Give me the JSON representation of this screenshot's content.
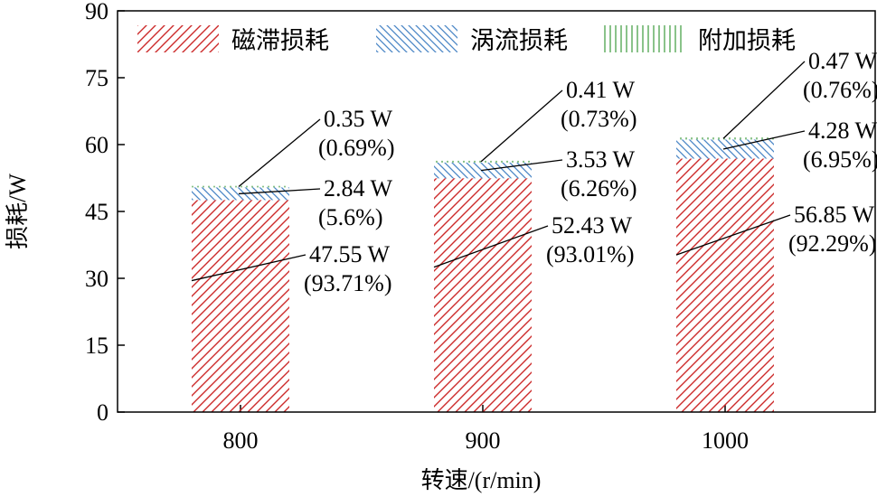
{
  "chart_data": {
    "type": "bar",
    "stacked": true,
    "xlabel": "转速/(r/min)",
    "ylabel": "损耗/W",
    "ylim": [
      0,
      90
    ],
    "yticks": [
      0,
      15,
      30,
      45,
      60,
      75,
      90
    ],
    "categories": [
      "800",
      "900",
      "1000"
    ],
    "legend_position": "top",
    "series": [
      {
        "name": "磁滞损耗",
        "color": "#cc2a2a",
        "pattern": "diagonal-forward",
        "values": [
          47.55,
          52.43,
          56.85
        ],
        "labels": [
          "47.55 W",
          "52.43 W",
          "56.85 W"
        ],
        "percents": [
          "(93.71%)",
          "(93.01%)",
          "(92.29%)"
        ]
      },
      {
        "name": "涡流损耗",
        "color": "#4a86c6",
        "pattern": "diagonal-back",
        "values": [
          2.84,
          3.53,
          4.28
        ],
        "labels": [
          "2.84 W",
          "3.53 W",
          "4.28 W"
        ],
        "percents": [
          "(5.6%)",
          "(6.26%)",
          "(6.95%)"
        ]
      },
      {
        "name": "附加损耗",
        "color": "#3a9a3a",
        "pattern": "vertical",
        "values": [
          0.35,
          0.41,
          0.47
        ],
        "labels": [
          "0.35 W",
          "0.41 W",
          "0.47 W"
        ],
        "percents": [
          "(0.69%)",
          "(0.73%)",
          "(0.76%)"
        ]
      }
    ]
  }
}
